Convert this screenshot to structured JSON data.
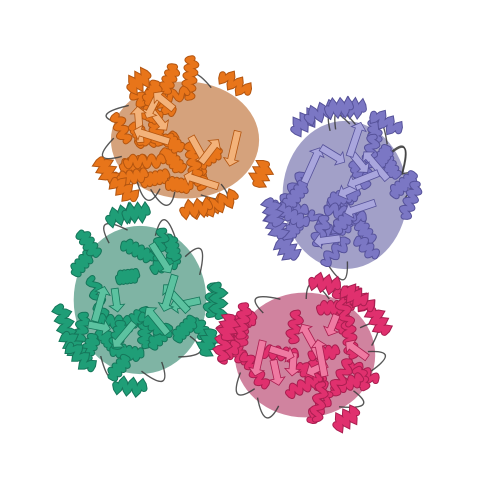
{
  "image": {
    "subject": "protein-ribbon-structure",
    "background": "#ffffff",
    "subunits": [
      {
        "name": "orange",
        "color": "#e8751a",
        "shade": "#b35510",
        "light": "#f3b27a"
      },
      {
        "name": "blue",
        "color": "#7b77c4",
        "shade": "#56529a",
        "light": "#a9a6dd"
      },
      {
        "name": "green",
        "color": "#1f9e77",
        "shade": "#15765a",
        "light": "#5cc2a0"
      },
      {
        "name": "pink",
        "color": "#e0306e",
        "shade": "#a91e50",
        "light": "#ef7aa2"
      }
    ],
    "loop_color": "#3a3a3a"
  }
}
